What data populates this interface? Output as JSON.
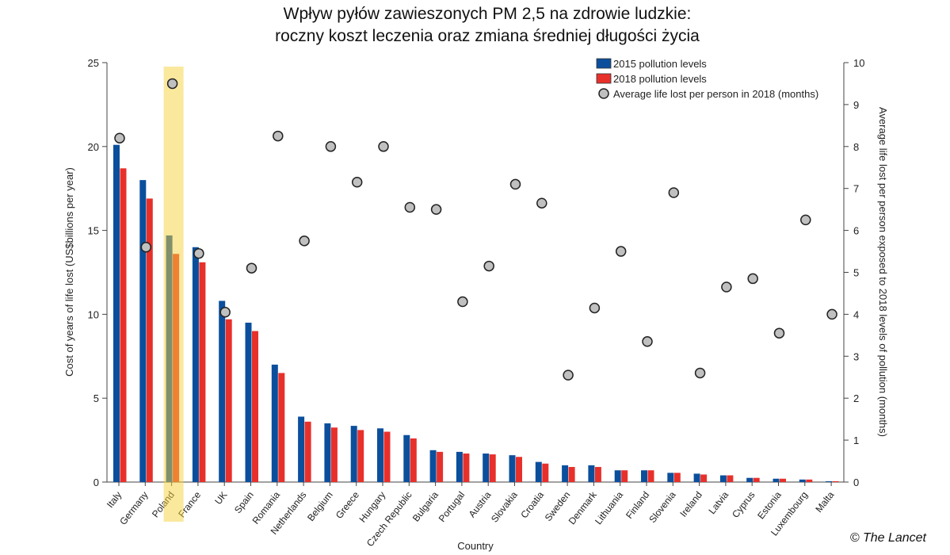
{
  "chart_data": {
    "type": "bar",
    "title": "Wpływ pyłów zawieszonych PM 2,5 na zdrowie ludzkie:",
    "subtitle": "roczny koszt leczenia oraz zmiana średniej długości życia",
    "xlabel": "Country",
    "ylabel": "Cost of years of life lost (US$billions per year)",
    "y2label": "Average life lost per person exposed to 2018 levels of pollution (months)",
    "ylim": [
      0,
      25
    ],
    "y2lim": [
      0,
      10
    ],
    "yticks": [
      0,
      5,
      10,
      15,
      20,
      25
    ],
    "y2ticks": [
      0,
      1,
      2,
      3,
      4,
      5,
      6,
      7,
      8,
      9,
      10
    ],
    "grid": false,
    "legend_position": "top-right",
    "highlight": "Poland",
    "categories": [
      "Italy",
      "Germany",
      "Poland",
      "France",
      "UK",
      "Spain",
      "Romania",
      "Netherlands",
      "Belgium",
      "Greece",
      "Hungary",
      "Czech Republic",
      "Bulgaria",
      "Portugal",
      "Austria",
      "Slovakia",
      "Croatia",
      "Sweden",
      "Denmark",
      "Lithuania",
      "Finland",
      "Slovenia",
      "Ireland",
      "Latvia",
      "Cyprus",
      "Estonia",
      "Luxembourg",
      "Malta"
    ],
    "series": [
      {
        "name": "2015 pollution levels",
        "type": "bar",
        "axis": "left",
        "color": "#0b4f9c",
        "values": [
          20.1,
          18.0,
          14.7,
          14.0,
          10.8,
          9.5,
          7.0,
          3.9,
          3.5,
          3.35,
          3.2,
          2.8,
          1.9,
          1.8,
          1.7,
          1.6,
          1.2,
          1.0,
          1.0,
          0.7,
          0.7,
          0.55,
          0.5,
          0.4,
          0.25,
          0.2,
          0.15,
          0.05
        ]
      },
      {
        "name": "2018 pollution levels",
        "type": "bar",
        "axis": "left",
        "color": "#e8302b",
        "values": [
          18.7,
          16.9,
          13.6,
          13.1,
          9.7,
          9.0,
          6.5,
          3.6,
          3.25,
          3.1,
          3.0,
          2.6,
          1.8,
          1.7,
          1.65,
          1.5,
          1.1,
          0.9,
          0.9,
          0.7,
          0.7,
          0.55,
          0.45,
          0.4,
          0.25,
          0.2,
          0.15,
          0.05
        ]
      },
      {
        "name": "Average life lost per person in 2018 (months)",
        "type": "scatter",
        "axis": "right",
        "color": "#c0c0c0",
        "values": [
          8.2,
          5.6,
          9.5,
          5.45,
          4.05,
          5.1,
          8.25,
          5.75,
          8.0,
          7.15,
          8.0,
          6.55,
          6.5,
          4.3,
          5.15,
          7.1,
          6.65,
          2.55,
          4.15,
          5.5,
          3.35,
          6.9,
          2.6,
          4.65,
          4.85,
          3.55,
          6.25,
          4.0
        ]
      }
    ]
  },
  "credit": "© The Lancet"
}
